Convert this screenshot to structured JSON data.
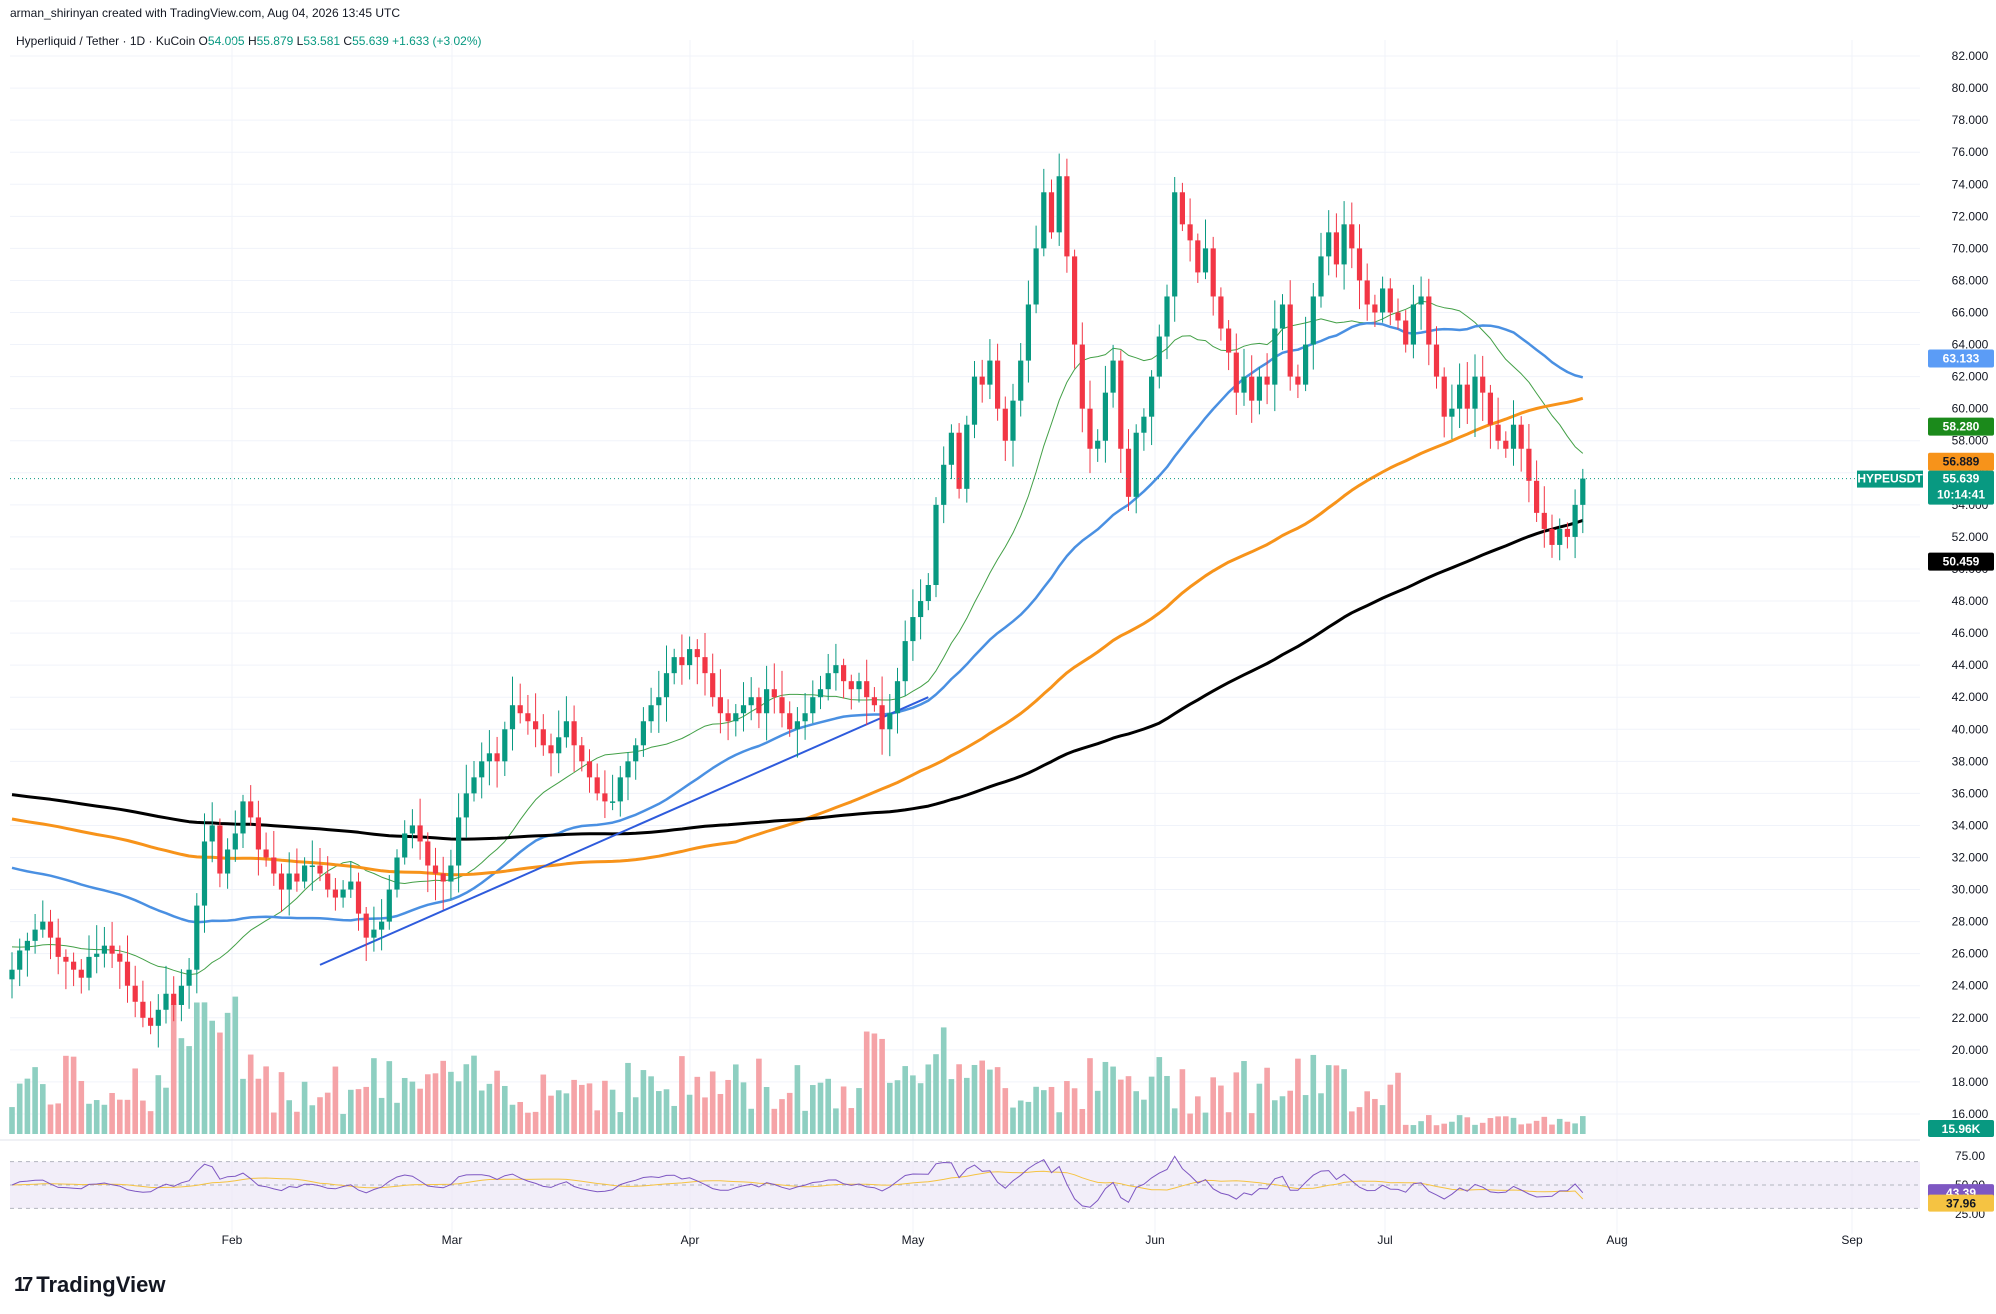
{
  "header": {
    "credit": "arman_shirinyan created with TradingView.com, Aug 04, 2026 13:45 UTC"
  },
  "legend": {
    "symbol": "Hyperliquid / Tether · 1D · KuCoin",
    "o_label": "O",
    "o": "54.005",
    "h_label": "H",
    "h": "55.879",
    "l_label": "L",
    "l": "53.581",
    "c_label": "C",
    "c": "55.639",
    "change": "+1.633 (+3.02%)"
  },
  "brand": {
    "logo": "17",
    "name": "TradingView"
  },
  "chart_data": {
    "type": "candlestick",
    "ylim": [
      15,
      83
    ],
    "y_ticks": [
      "82.000",
      "80.000",
      "78.000",
      "76.000",
      "74.000",
      "72.000",
      "70.000",
      "68.000",
      "66.000",
      "64.000",
      "62.000",
      "60.000",
      "58.000",
      "56.000",
      "54.000",
      "52.000",
      "50.000",
      "48.000",
      "46.000",
      "44.000",
      "42.000",
      "40.000",
      "38.000",
      "36.000",
      "34.000",
      "32.000",
      "30.000",
      "28.000",
      "26.000",
      "24.000",
      "22.000",
      "20.000",
      "18.000",
      "16.000"
    ],
    "x_ticks": [
      "Feb",
      "Mar",
      "Apr",
      "May",
      "Jun",
      "Jul",
      "Aug",
      "Sep"
    ],
    "closes": [
      25.0,
      26.2,
      26.8,
      27.5,
      28.0,
      27.0,
      25.8,
      25.5,
      25.0,
      24.5,
      25.8,
      26.0,
      26.5,
      26.0,
      25.5,
      24.0,
      23.0,
      22.0,
      21.5,
      22.5,
      23.5,
      22.8,
      24.0,
      25.0,
      29.0,
      33.0,
      34.0,
      31.0,
      32.5,
      33.5,
      35.5,
      34.5,
      32.5,
      32.0,
      31.0,
      30.0,
      31.0,
      30.5,
      31.5,
      31.5,
      31.0,
      30.0,
      29.5,
      30.0,
      30.5,
      28.5,
      27.0,
      27.5,
      28.0,
      30.0,
      32.0,
      33.5,
      34.0,
      33.0,
      31.5,
      31.0,
      30.5,
      31.5,
      34.5,
      36.0,
      37.0,
      38.0,
      38.5,
      38.0,
      40.0,
      41.5,
      41.0,
      40.5,
      40.0,
      39.0,
      38.5,
      39.5,
      40.5,
      39.0,
      38.0,
      37.0,
      36.0,
      35.5,
      35.5,
      37.0,
      38.0,
      39.0,
      40.5,
      41.5,
      42.0,
      43.5,
      44.5,
      44.0,
      45.0,
      44.5,
      43.5,
      42.0,
      41.0,
      40.5,
      41.0,
      41.5,
      42.0,
      41.0,
      42.5,
      42.0,
      41.0,
      40.0,
      40.5,
      41.0,
      42.0,
      42.5,
      43.5,
      44.0,
      43.0,
      42.5,
      43.0,
      42.0,
      41.5,
      40.0,
      41.0,
      43.0,
      45.5,
      47.0,
      48.0,
      49.0,
      54.0,
      56.5,
      58.5,
      55.0,
      59.0,
      62.0,
      61.5,
      63.0,
      60.0,
      58.0,
      60.5,
      63.0,
      66.5,
      70.0,
      73.5,
      71.0,
      74.5,
      69.5,
      64.0,
      60.0,
      57.5,
      58.0,
      61.0,
      63.0,
      57.5,
      54.5,
      58.5,
      59.5,
      62.0,
      64.5,
      67.0,
      73.5,
      71.5,
      70.5,
      68.5,
      70.0,
      67.0,
      65.0,
      63.5,
      61.0,
      62.0,
      60.5,
      62.0,
      61.5,
      65.0,
      66.5,
      62.0,
      61.5,
      64.0,
      67.0,
      69.5,
      71.0,
      69.0,
      71.5,
      70.0,
      68.0,
      66.5,
      66.0,
      67.5,
      66.0,
      65.5,
      64.0,
      66.5,
      67.0,
      64.0,
      62.0,
      59.5,
      60.0,
      61.5,
      60.0,
      62.0,
      61.0,
      59.0,
      58.0,
      57.5,
      59.0,
      57.5,
      55.5,
      53.5,
      52.5,
      51.5,
      52.5,
      52.0,
      54.0,
      55.639
    ],
    "series": [
      {
        "name": "SMA short",
        "color": "#43a047",
        "last": "58.280"
      },
      {
        "name": "SMA mid",
        "color": "#4a90e2",
        "last": "63.133"
      },
      {
        "name": "SMA long",
        "color": "#f7931a",
        "last": "56.889"
      },
      {
        "name": "SMA longest",
        "color": "#000000",
        "last": "50.459"
      }
    ],
    "trendline": {
      "from": [
        "~Feb 25",
        25.3
      ],
      "to": [
        "~May 28",
        42.0
      ],
      "color": "#2e5bdc"
    },
    "last_price_tag": {
      "symbol": "HYPEUSDT",
      "price": "55.639",
      "countdown": "10:14:41",
      "color": "#089981"
    },
    "volume_tag": "15.96K",
    "rsi": {
      "y_ticks": [
        "75.00",
        "50.00",
        "25.00"
      ],
      "value": "43.39",
      "signal": "37.96",
      "ylim": [
        20,
        80
      ],
      "value_color": "#7e57c2",
      "signal_color": "#f5c342"
    },
    "colors": {
      "up": "#089981",
      "down": "#f23645",
      "vol_up": "#8ecfc1",
      "vol_down": "#f5a3a7"
    }
  }
}
